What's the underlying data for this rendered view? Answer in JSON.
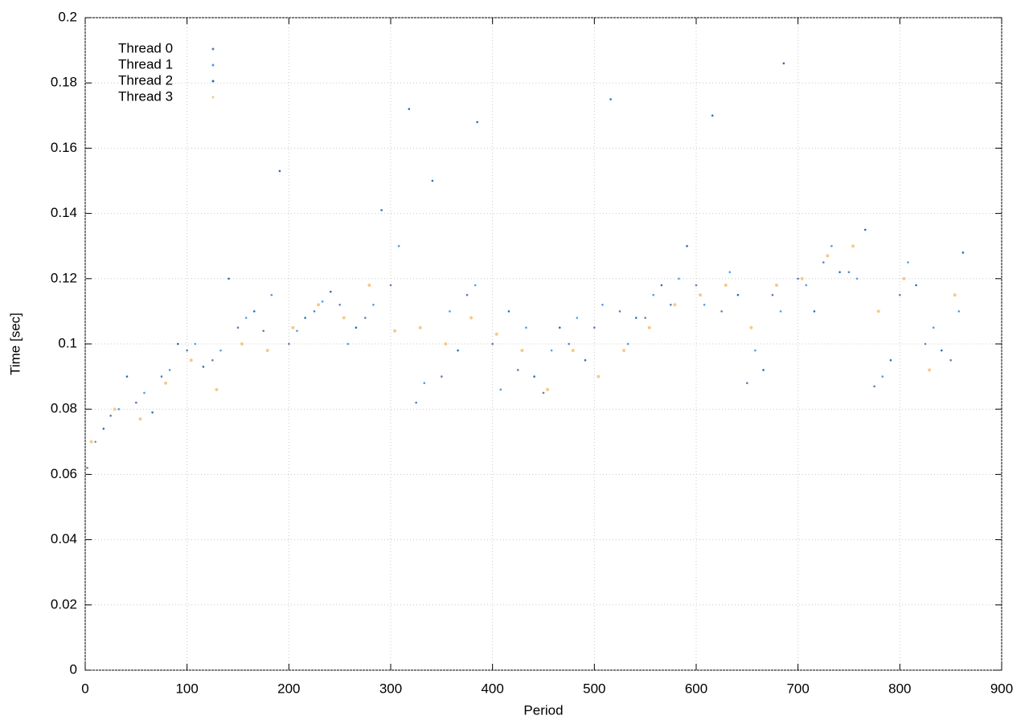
{
  "chart_data": {
    "type": "scatter",
    "x_label": "Period",
    "y_label": "Time [sec]",
    "xlim": [
      0,
      900
    ],
    "ylim": [
      0,
      0.2
    ],
    "xticks": [
      0,
      100,
      200,
      300,
      400,
      500,
      600,
      700,
      800,
      900
    ],
    "yticks": [
      0,
      0.02,
      0.04,
      0.06,
      0.08,
      0.1,
      0.12,
      0.14,
      0.16,
      0.18,
      0.2
    ],
    "grid": true,
    "legend": "top-left",
    "series": [
      {
        "name": "Thread 0",
        "color": "#5b7fb0",
        "x": [
          2,
          25,
          50,
          75,
          100,
          125,
          150,
          175,
          200,
          225,
          250,
          275,
          300,
          325,
          350,
          375,
          400,
          425,
          450,
          475,
          500,
          525,
          550,
          575,
          600,
          625,
          650,
          675,
          700,
          725,
          750,
          775,
          800,
          825,
          850
        ],
        "values": [
          0.062,
          0.078,
          0.082,
          0.09,
          0.098,
          0.095,
          0.105,
          0.104,
          0.1,
          0.11,
          0.112,
          0.108,
          0.118,
          0.082,
          0.09,
          0.115,
          0.1,
          0.092,
          0.085,
          0.1,
          0.105,
          0.11,
          0.108,
          0.112,
          0.118,
          0.11,
          0.088,
          0.115,
          0.12,
          0.125,
          0.122,
          0.087,
          0.115,
          0.1,
          0.095
        ]
      },
      {
        "name": "Thread 1",
        "color": "#4a9ee8",
        "x": [
          10,
          33,
          58,
          83,
          108,
          133,
          158,
          183,
          208,
          233,
          258,
          283,
          308,
          333,
          358,
          383,
          408,
          433,
          458,
          483,
          508,
          533,
          558,
          583,
          608,
          633,
          658,
          683,
          708,
          733,
          758,
          783,
          808,
          833,
          858
        ],
        "values": [
          0.07,
          0.08,
          0.085,
          0.092,
          0.1,
          0.098,
          0.108,
          0.115,
          0.104,
          0.113,
          0.1,
          0.112,
          0.13,
          0.088,
          0.11,
          0.118,
          0.086,
          0.105,
          0.098,
          0.108,
          0.112,
          0.1,
          0.115,
          0.12,
          0.112,
          0.122,
          0.098,
          0.11,
          0.118,
          0.13,
          0.12,
          0.09,
          0.125,
          0.105,
          0.11
        ]
      },
      {
        "name": "Thread 2",
        "color": "#2a6db5",
        "x": [
          18,
          41,
          66,
          91,
          116,
          141,
          166,
          191,
          216,
          241,
          266,
          291,
          318,
          341,
          366,
          385,
          416,
          441,
          466,
          491,
          516,
          541,
          566,
          591,
          616,
          641,
          666,
          686,
          716,
          741,
          766,
          791,
          816,
          841,
          862
        ],
        "values": [
          0.074,
          0.09,
          0.079,
          0.1,
          0.093,
          0.12,
          0.11,
          0.153,
          0.108,
          0.116,
          0.105,
          0.141,
          0.172,
          0.15,
          0.098,
          0.168,
          0.11,
          0.09,
          0.105,
          0.095,
          0.175,
          0.108,
          0.118,
          0.13,
          0.17,
          0.115,
          0.092,
          0.186,
          0.11,
          0.122,
          0.135,
          0.095,
          0.118,
          0.098,
          0.128
        ]
      },
      {
        "name": "Thread 3",
        "color": "#f7c98a",
        "x": [
          6,
          29,
          54,
          79,
          104,
          129,
          154,
          179,
          204,
          229,
          254,
          279,
          304,
          329,
          354,
          379,
          404,
          429,
          454,
          479,
          504,
          529,
          554,
          579,
          604,
          629,
          654,
          679,
          704,
          729,
          754,
          779,
          804,
          829,
          854
        ],
        "values": [
          0.07,
          0.08,
          0.077,
          0.088,
          0.095,
          0.086,
          0.1,
          0.098,
          0.105,
          0.112,
          0.108,
          0.118,
          0.104,
          0.105,
          0.1,
          0.108,
          0.103,
          0.098,
          0.086,
          0.098,
          0.09,
          0.098,
          0.105,
          0.112,
          0.115,
          0.118,
          0.105,
          0.118,
          0.12,
          0.127,
          0.13,
          0.11,
          0.12,
          0.092,
          0.115
        ]
      }
    ]
  }
}
